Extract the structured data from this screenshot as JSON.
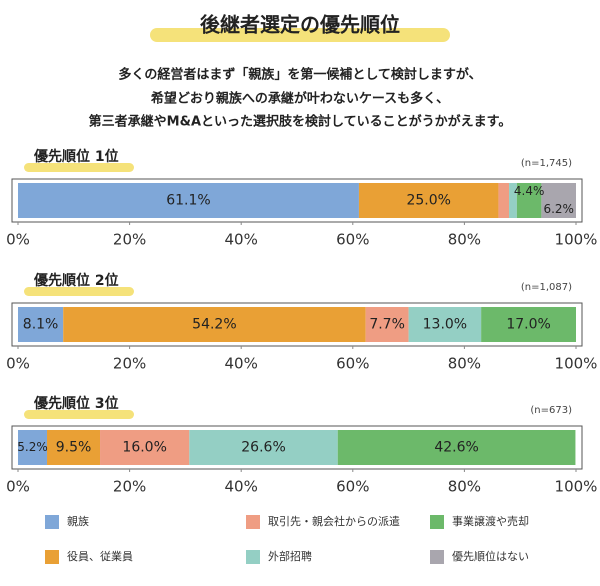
{
  "title": "後継者選定の優先順位",
  "description": [
    "多くの経営者はまず「親族」を第一候補として検討しますが、",
    "希望どおり親族への承継が叶わないケースも多く、",
    "第三者承継やM&Aといった選択肢を検討していることがうかがえます。"
  ],
  "legend": [
    {
      "name": "親族",
      "color": "#7fa7d8"
    },
    {
      "name": "役員、従業員",
      "color": "#e9a035"
    },
    {
      "name": "取引先・親会社からの派遣",
      "color": "#ef9d83"
    },
    {
      "name": "外部招聘",
      "color": "#94cfc4"
    },
    {
      "name": "事業譲渡や売却",
      "color": "#6cb96a"
    },
    {
      "name": "優先順位はない",
      "color": "#a9a6ae"
    }
  ],
  "chart_data": [
    {
      "type": "stacked-bar",
      "title": "優先順位 1位",
      "note": "(n=1,745)",
      "values": [
        61.1,
        25.0,
        1.9,
        1.4,
        4.4,
        6.2
      ],
      "value_labels": [
        "61.1%",
        "25.0%",
        null,
        null,
        "4.4%",
        "6.2%"
      ],
      "xlim": [
        0,
        100
      ],
      "xticks": [
        {
          "value": 0,
          "label": "0%"
        },
        {
          "value": 20,
          "label": "20%"
        },
        {
          "value": 40,
          "label": "40%"
        },
        {
          "value": 60,
          "label": "60%"
        },
        {
          "value": 80,
          "label": "80%"
        },
        {
          "value": 100,
          "label": "100%"
        }
      ]
    },
    {
      "type": "stacked-bar",
      "title": "優先順位 2位",
      "note": "(n=1,087)",
      "values": [
        8.1,
        54.2,
        7.7,
        13.0,
        17.0,
        0
      ],
      "value_labels": [
        "8.1%",
        "54.2%",
        "7.7%",
        "13.0%",
        "17.0%",
        null
      ],
      "xlim": [
        0,
        100
      ],
      "xticks": [
        {
          "value": 0,
          "label": "0%"
        },
        {
          "value": 20,
          "label": "20%"
        },
        {
          "value": 40,
          "label": "40%"
        },
        {
          "value": 60,
          "label": "60%"
        },
        {
          "value": 80,
          "label": "80%"
        },
        {
          "value": 100,
          "label": "100%"
        }
      ]
    },
    {
      "type": "stacked-bar",
      "title": "優先順位 3位",
      "note": "(n=673)",
      "values": [
        5.2,
        9.5,
        16.0,
        26.6,
        42.6,
        0
      ],
      "value_labels": [
        "5.2%",
        "9.5%",
        "16.0%",
        "26.6%",
        "42.6%",
        null
      ],
      "xlim": [
        0,
        100
      ],
      "xticks": [
        {
          "value": 0,
          "label": "0%"
        },
        {
          "value": 20,
          "label": "20%"
        },
        {
          "value": 40,
          "label": "40%"
        },
        {
          "value": 60,
          "label": "60%"
        },
        {
          "value": 80,
          "label": "80%"
        },
        {
          "value": 100,
          "label": "100%"
        }
      ]
    }
  ]
}
